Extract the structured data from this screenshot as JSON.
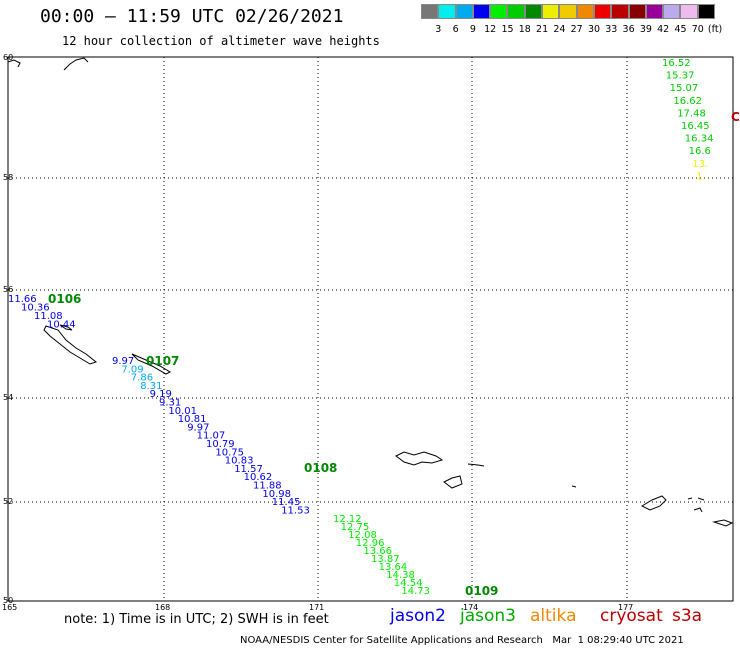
{
  "header": {
    "title": "00:00 – 11:59 UTC 02/26/2021",
    "subtitle": "12 hour collection of altimeter wave heights"
  },
  "colorscale": {
    "colors": [
      "#777777",
      "#00eeee",
      "#00aaee",
      "#0000ee",
      "#00ee00",
      "#00cc00",
      "#008800",
      "#eeee00",
      "#eecc00",
      "#ee8800",
      "#ee0000",
      "#bb0000",
      "#880000",
      "#990099",
      "#bbaaee",
      "#eebbee",
      "#000000"
    ],
    "labels": [
      "3",
      "6",
      "9",
      "12",
      "15",
      "18",
      "21",
      "24",
      "27",
      "30",
      "33",
      "36",
      "39",
      "42",
      "45",
      "70",
      "(ft)"
    ]
  },
  "axes": {
    "lat_labels": [
      "60",
      "58",
      "56",
      "54",
      "52",
      "50"
    ],
    "lon_labels": [
      "165",
      "168",
      "171",
      "174",
      "177"
    ]
  },
  "passes": [
    {
      "id": "0106",
      "color": "#008800"
    },
    {
      "id": "0107",
      "color": "#008800"
    },
    {
      "id": "0108",
      "color": "#008800"
    },
    {
      "id": "0109",
      "color": "#008800"
    },
    {
      "id": "C",
      "color": "#bb0000"
    }
  ],
  "tracks": [
    {
      "satellite": "jason2",
      "values": [
        "11.66",
        "10.36",
        "11.08",
        "10.44"
      ],
      "colors": [
        "#0000ee",
        "#0000ee",
        "#0000ee",
        "#0000ee"
      ]
    },
    {
      "satellite": "jason2",
      "values": [
        "9.97",
        "7.09",
        "7.86",
        "8.31",
        "9.19",
        "9.31",
        "10.01",
        "10.81",
        "9.97",
        "11.07",
        "10.79",
        "10.75",
        "10.83",
        "11.57",
        "10.62",
        "11.88",
        "10.98",
        "11.45",
        "11.53"
      ],
      "colors": [
        "#0000ee",
        "#00aaee",
        "#00aaee",
        "#00aaee",
        "#0000ee",
        "#0000ee",
        "#0000ee",
        "#0000ee",
        "#0000ee",
        "#0000ee",
        "#0000ee",
        "#0000ee",
        "#0000ee",
        "#0000ee",
        "#0000ee",
        "#0000ee",
        "#0000ee",
        "#0000ee",
        "#0000ee"
      ]
    },
    {
      "satellite": "jason3",
      "values": [
        "12.12",
        "12.75",
        "12.08",
        "12.96",
        "13.66",
        "13.87",
        "13.64",
        "14.38",
        "14.54",
        "14.73"
      ],
      "colors": [
        "#00ee00",
        "#00ee00",
        "#00ee00",
        "#00ee00",
        "#00ee00",
        "#00ee00",
        "#00ee00",
        "#00ee00",
        "#00ee00",
        "#00ee00"
      ]
    },
    {
      "satellite": "jason3",
      "values": [
        "16.52",
        "15.37",
        "15.07",
        "16.62",
        "17.48",
        "16.45",
        "16.34",
        "16.6",
        "13.",
        "1."
      ],
      "colors": [
        "#00cc00",
        "#00cc00",
        "#00cc00",
        "#00cc00",
        "#00cc00",
        "#00cc00",
        "#00cc00",
        "#00cc00",
        "#eeee00",
        "#eeee00"
      ]
    }
  ],
  "footer": {
    "note": "note: 1) Time is in UTC; 2) SWH is in feet",
    "legend": [
      {
        "name": "jason2",
        "color": "#0000ee"
      },
      {
        "name": "jason3",
        "color": "#00aa00"
      },
      {
        "name": "altika",
        "color": "#ee8800"
      },
      {
        "name": "cryosat",
        "color": "#bb0000"
      },
      {
        "name": "s3a",
        "color": "#bb0000"
      }
    ],
    "credit": "NOAA/NESDIS Center for Satellite Applications and Research   Mar  1 08:29:40 UTC 2021"
  }
}
